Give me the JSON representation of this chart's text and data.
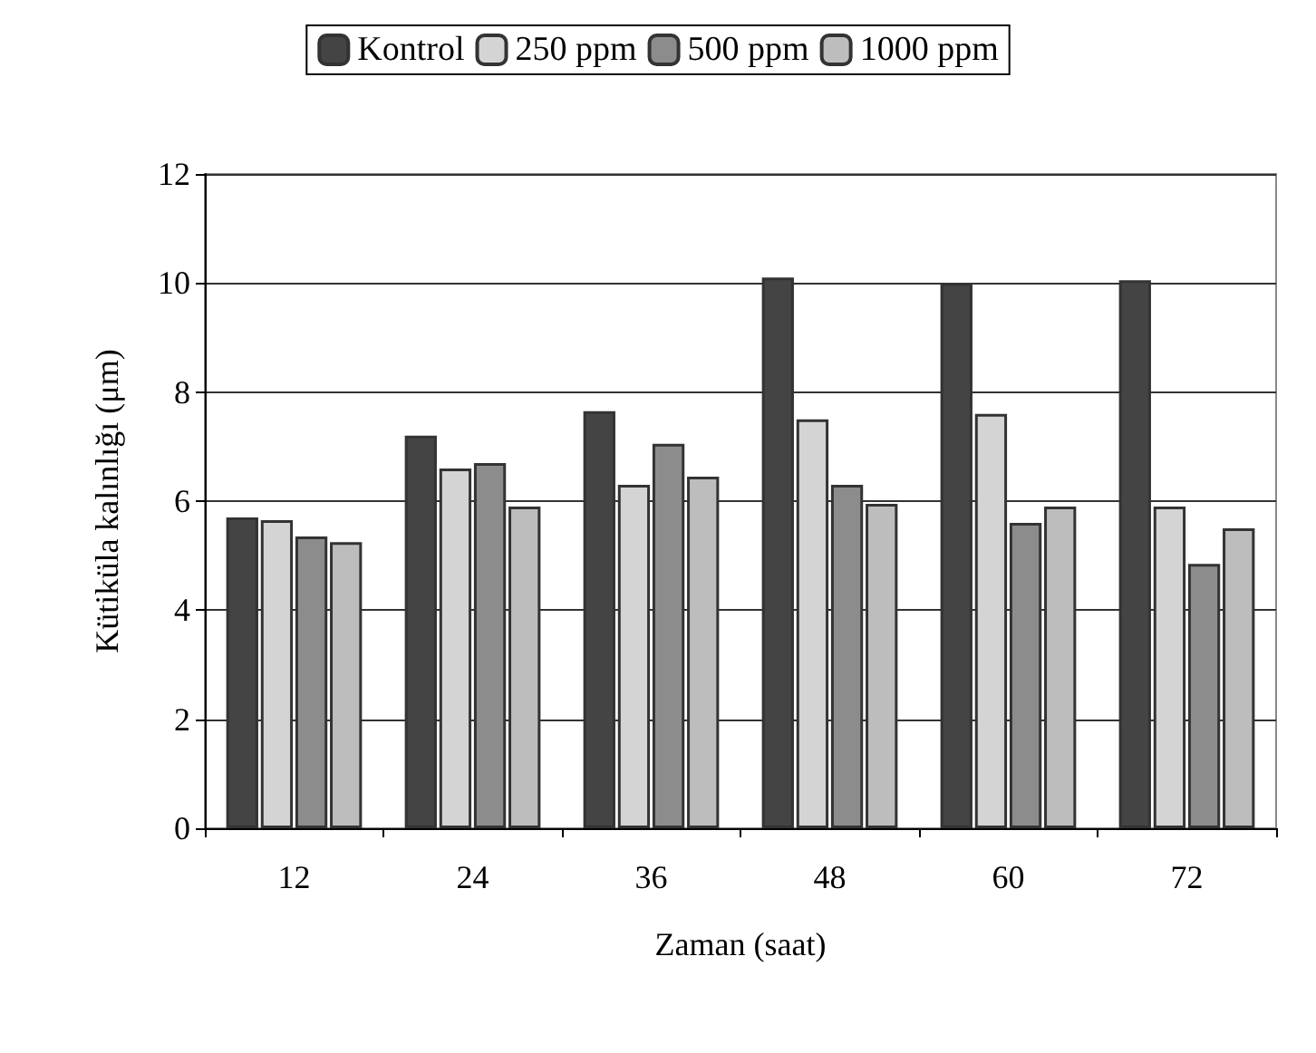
{
  "chart_data": {
    "type": "bar",
    "xlabel": "Zaman (saat)",
    "ylabel": "Kütiküla kalınlığı (μm)",
    "categories": [
      "12",
      "24",
      "36",
      "48",
      "60",
      "72"
    ],
    "series": [
      {
        "name": "Kontrol",
        "color": "#444444",
        "values": [
          5.7,
          7.2,
          7.65,
          10.1,
          10.0,
          10.05
        ]
      },
      {
        "name": "250 ppm",
        "color": "#d4d4d4",
        "values": [
          5.65,
          6.6,
          6.3,
          7.5,
          7.6,
          5.9
        ]
      },
      {
        "name": "500 ppm",
        "color": "#8c8c8c",
        "values": [
          5.35,
          6.7,
          7.05,
          6.3,
          5.6,
          4.85
        ]
      },
      {
        "name": "1000 ppm",
        "color": "#bdbdbd",
        "values": [
          5.25,
          5.9,
          6.45,
          5.95,
          5.9,
          5.5
        ]
      }
    ],
    "ylim": [
      0,
      12
    ],
    "yticks": [
      0,
      2,
      4,
      6,
      8,
      10,
      12
    ],
    "grid": "y",
    "legend": "top"
  }
}
